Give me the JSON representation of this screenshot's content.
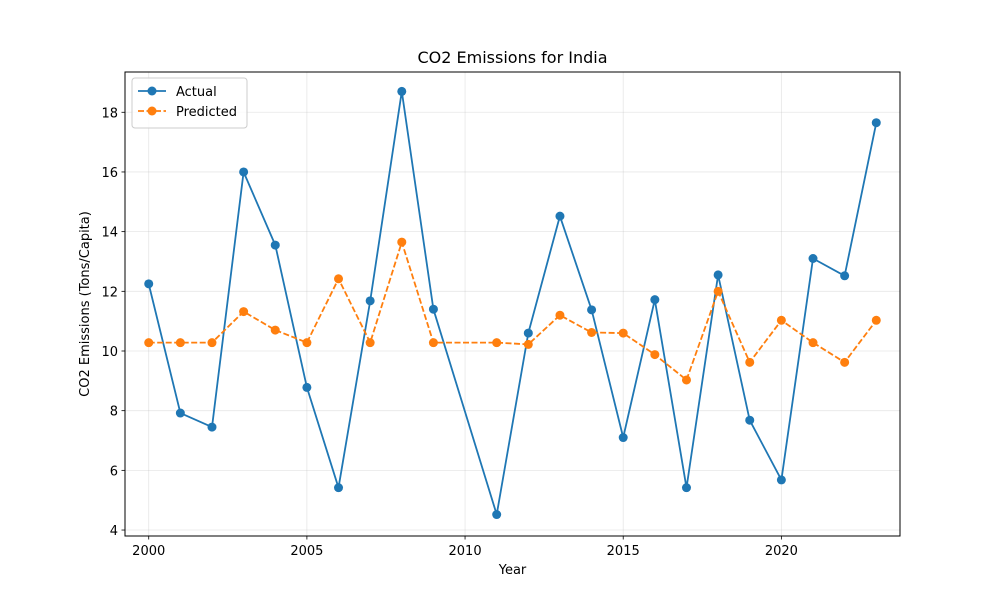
{
  "chart_data": {
    "type": "line",
    "title": "CO2 Emissions for India",
    "xlabel": "Year",
    "ylabel": "CO2 Emissions (Tons/Capita)",
    "xlim": [
      1999.25,
      2023.75
    ],
    "ylim": [
      3.8,
      19.35
    ],
    "xticks": [
      2000,
      2005,
      2010,
      2015,
      2020
    ],
    "yticks": [
      4,
      6,
      8,
      10,
      12,
      14,
      16,
      18
    ],
    "grid": true,
    "legend_position": "top-left",
    "series": [
      {
        "name": "Actual",
        "color": "#1f77b4",
        "style": "solid",
        "x": [
          2000,
          2001,
          2002,
          2003,
          2004,
          2005,
          2006,
          2007,
          2008,
          2009,
          2011,
          2012,
          2013,
          2014,
          2015,
          2016,
          2017,
          2018,
          2019,
          2020,
          2021,
          2022,
          2023
        ],
        "values": [
          12.25,
          7.92,
          7.45,
          16.0,
          13.55,
          8.78,
          5.42,
          11.68,
          18.7,
          11.4,
          4.52,
          10.6,
          14.52,
          11.38,
          7.1,
          11.72,
          5.42,
          12.55,
          7.68,
          5.68,
          13.1,
          12.52,
          17.65
        ]
      },
      {
        "name": "Predicted",
        "color": "#ff7f0e",
        "style": "dashed",
        "x": [
          2000,
          2001,
          2002,
          2003,
          2004,
          2005,
          2006,
          2007,
          2008,
          2009,
          2011,
          2012,
          2013,
          2014,
          2015,
          2016,
          2017,
          2018,
          2019,
          2020,
          2021,
          2022,
          2023
        ],
        "values": [
          10.28,
          10.28,
          10.28,
          11.32,
          10.7,
          10.28,
          12.42,
          10.28,
          13.65,
          10.28,
          10.28,
          10.22,
          11.2,
          10.62,
          10.6,
          9.88,
          9.03,
          12.0,
          9.62,
          11.03,
          10.28,
          9.62,
          11.03
        ]
      }
    ]
  }
}
